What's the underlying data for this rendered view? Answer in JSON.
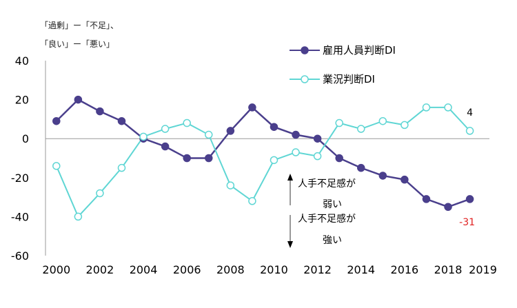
{
  "notes": {
    "line1": "「過剰」ー「不足」、",
    "line2": "「良い」ー「悪い」"
  },
  "annotations": {
    "weak_line1": "人手不足感が",
    "weak_line2": "弱い",
    "strong_line1": "人手不足感が",
    "strong_line2": "強い"
  },
  "colors": {
    "employment": "#4a3f8c",
    "business": "#5fd6d4",
    "negative_label": "#e02020",
    "axis": "#9a9a9a"
  },
  "chart_data": {
    "type": "line",
    "x": [
      2000,
      2001,
      2002,
      2003,
      2004,
      2005,
      2006,
      2007,
      2008,
      2009,
      2010,
      2011,
      2012,
      2013,
      2014,
      2015,
      2016,
      2017,
      2018,
      2019
    ],
    "xticks": [
      "2000",
      "2002",
      "2004",
      "2006",
      "2008",
      "2010",
      "2012",
      "2014",
      "2016",
      "2018",
      "2019"
    ],
    "xtick_values": [
      2000,
      2002,
      2004,
      2006,
      2008,
      2010,
      2012,
      2014,
      2016,
      2018,
      2019.6
    ],
    "yticks": [
      "40",
      "20",
      "0",
      "-20",
      "-40",
      "-60"
    ],
    "ytick_values": [
      40,
      20,
      0,
      -20,
      -40,
      -60
    ],
    "ylim": [
      -60,
      40
    ],
    "xlim": [
      1999.5,
      2019.9
    ],
    "series": [
      {
        "name": "雇用人員判断DI",
        "marker": "filled",
        "values": [
          9,
          20,
          14,
          9,
          0,
          -4,
          -10,
          -10,
          4,
          16,
          6,
          2,
          0,
          -10,
          -15,
          -19,
          -21,
          -31,
          -35,
          -31
        ],
        "end_label": "-31"
      },
      {
        "name": "業況判断DI",
        "marker": "hollow",
        "values": [
          -14,
          -40,
          -28,
          -15,
          1,
          5,
          8,
          2,
          -24,
          -32,
          -11,
          -7,
          -9,
          8,
          5,
          9,
          7,
          16,
          16,
          4
        ],
        "end_label": "4"
      }
    ]
  }
}
